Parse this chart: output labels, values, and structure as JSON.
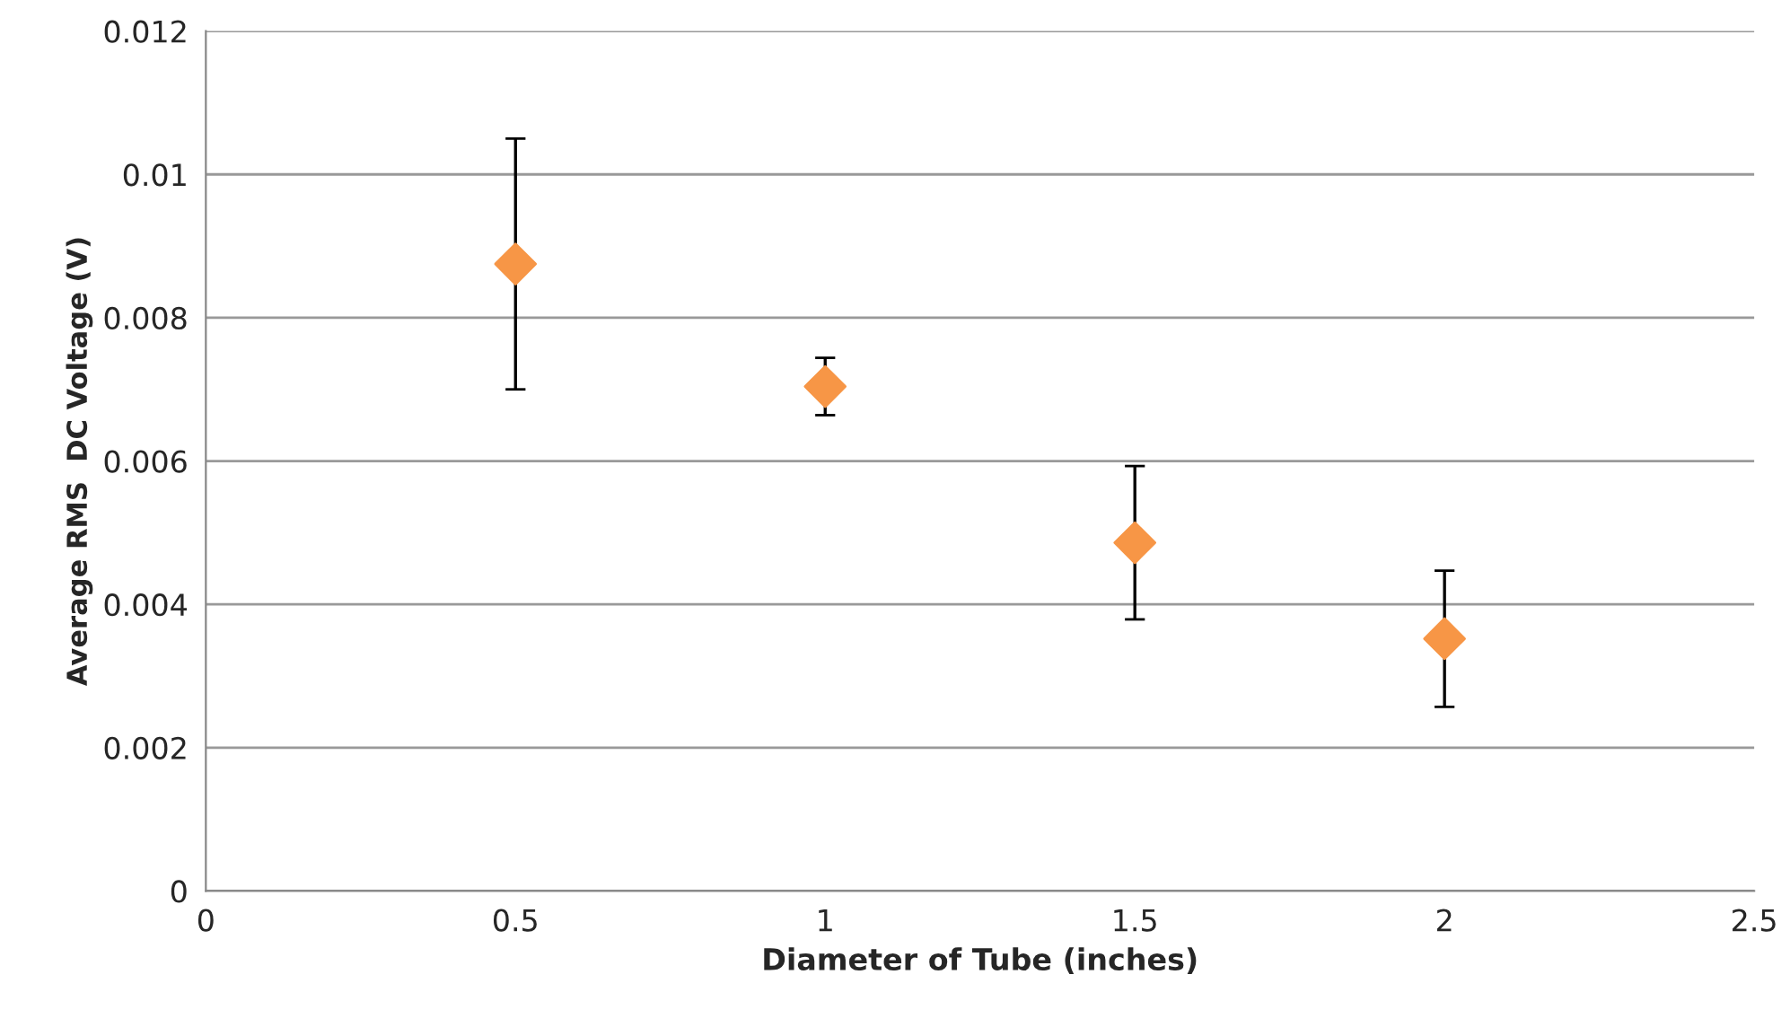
{
  "chart_data": {
    "type": "scatter",
    "xlabel": "Diameter of Tube (inches)",
    "ylabel": "Average RMS  DC Voltage (V)",
    "x": [
      0.5,
      1,
      1.5,
      2
    ],
    "series": [
      {
        "color": "#f79646",
        "values": [
          0.00875,
          0.00704,
          0.00486,
          0.00352
        ],
        "errors": [
          0.00175,
          0.0004,
          0.00107,
          0.00095
        ]
      }
    ],
    "xlim": [
      0,
      2.5
    ],
    "xticks": [
      0,
      0.5,
      1,
      1.5,
      2,
      2.5
    ],
    "ylim": [
      0,
      0.012
    ],
    "yticks": [
      {
        "value": 0,
        "label": "0"
      },
      0.002,
      0.004,
      0.006,
      0.008,
      {
        "value": 0.01,
        "label": "0.01"
      },
      0.012
    ],
    "grid": "y",
    "marker": "diamond"
  }
}
